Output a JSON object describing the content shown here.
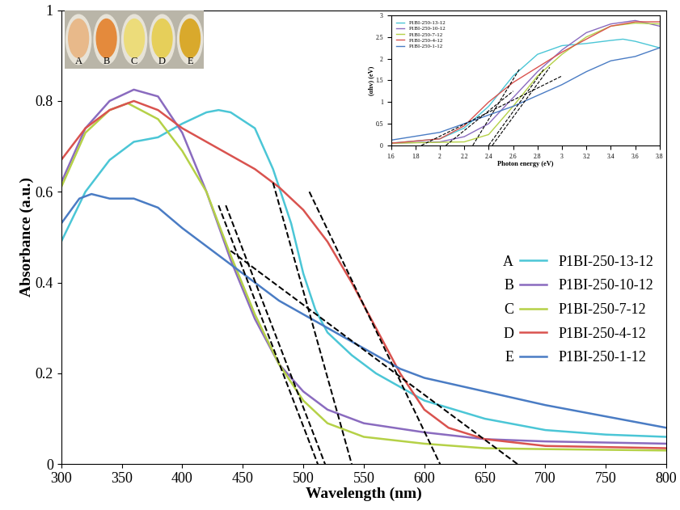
{
  "chart_data": [
    {
      "type": "line",
      "x_label": "Wavelength (nm)",
      "y_label": "Absorbance (a.u.)",
      "xlim": [
        300,
        800
      ],
      "xticks": [
        300,
        350,
        400,
        450,
        500,
        550,
        600,
        650,
        700,
        750,
        800
      ],
      "ylim": [
        0,
        1
      ],
      "yticks": [
        0,
        0.2,
        0.4,
        0.6,
        0.8,
        1
      ],
      "grid": false,
      "legend": "lower right",
      "line_style": "solid",
      "series": [
        {
          "name": "P1BI-250-13-12",
          "label": "A",
          "color": "#4bc6d6",
          "sample_color": "#e8b98a",
          "x": [
            300,
            320,
            340,
            360,
            380,
            400,
            420,
            430,
            440,
            460,
            475,
            490,
            500,
            510,
            520,
            540,
            560,
            580,
            600,
            650,
            700,
            750,
            800
          ],
          "values": [
            0.49,
            0.6,
            0.67,
            0.71,
            0.72,
            0.75,
            0.775,
            0.78,
            0.775,
            0.74,
            0.65,
            0.53,
            0.42,
            0.34,
            0.29,
            0.24,
            0.2,
            0.17,
            0.14,
            0.1,
            0.075,
            0.065,
            0.06
          ]
        },
        {
          "name": "P1BI-250-10-12",
          "label": "B",
          "color": "#8a6bbf",
          "sample_color": "#e48a3c",
          "x": [
            300,
            320,
            340,
            360,
            380,
            400,
            420,
            440,
            460,
            480,
            500,
            520,
            550,
            600,
            650,
            700,
            800
          ],
          "values": [
            0.62,
            0.74,
            0.8,
            0.825,
            0.81,
            0.73,
            0.6,
            0.45,
            0.32,
            0.22,
            0.16,
            0.12,
            0.09,
            0.07,
            0.055,
            0.05,
            0.045
          ]
        },
        {
          "name": "P1BI-250-7-12",
          "label": "C",
          "color": "#b5d147",
          "sample_color": "#ecdc7a",
          "x": [
            300,
            320,
            340,
            355,
            380,
            400,
            420,
            440,
            460,
            480,
            500,
            520,
            550,
            600,
            650,
            700,
            800
          ],
          "values": [
            0.61,
            0.73,
            0.78,
            0.795,
            0.76,
            0.69,
            0.6,
            0.46,
            0.33,
            0.22,
            0.14,
            0.09,
            0.06,
            0.045,
            0.035,
            0.033,
            0.03
          ]
        },
        {
          "name": "P1BI-250-4-12",
          "label": "D",
          "color": "#d9534f",
          "sample_color": "#e6cf5a",
          "x": [
            300,
            320,
            340,
            360,
            380,
            400,
            420,
            440,
            460,
            480,
            500,
            520,
            540,
            560,
            580,
            600,
            620,
            650,
            700,
            800
          ],
          "values": [
            0.67,
            0.74,
            0.78,
            0.8,
            0.78,
            0.74,
            0.71,
            0.68,
            0.65,
            0.61,
            0.56,
            0.49,
            0.4,
            0.3,
            0.2,
            0.12,
            0.08,
            0.055,
            0.04,
            0.035
          ]
        },
        {
          "name": "P1BI-250-1-12",
          "label": "E",
          "color": "#4a7cc4",
          "sample_color": "#d9a92c",
          "x": [
            300,
            315,
            325,
            340,
            360,
            380,
            400,
            420,
            440,
            460,
            480,
            500,
            520,
            540,
            560,
            580,
            600,
            650,
            700,
            750,
            800
          ],
          "values": [
            0.53,
            0.585,
            0.595,
            0.585,
            0.585,
            0.565,
            0.52,
            0.48,
            0.44,
            0.4,
            0.36,
            0.33,
            0.3,
            0.27,
            0.24,
            0.21,
            0.19,
            0.16,
            0.13,
            0.105,
            0.08
          ]
        }
      ],
      "tangent_lines": {
        "color": "#000000",
        "line_style": "dashed",
        "lines": [
          {
            "x": [
              430,
              512
            ],
            "y": [
              0.57,
              0
            ]
          },
          {
            "x": [
              436,
              518
            ],
            "y": [
              0.57,
              0
            ]
          },
          {
            "x": [
              475,
              540
            ],
            "y": [
              0.62,
              0
            ]
          },
          {
            "x": [
              505,
              613
            ],
            "y": [
              0.6,
              0
            ]
          },
          {
            "x": [
              440,
              677
            ],
            "y": [
              0.47,
              0
            ]
          }
        ]
      }
    },
    {
      "type": "line",
      "x_label": "Photon energy (eV)",
      "y_label": "(αhv) (eV)",
      "xlim": [
        1.6,
        3.8
      ],
      "xticks": [
        1.6,
        1.8,
        2,
        2.2,
        2.4,
        2.6,
        2.8,
        3,
        3.2,
        3.4,
        3.6,
        3.8
      ],
      "ylim": [
        0,
        3
      ],
      "yticks": [
        0,
        0.5,
        1,
        1.5,
        2,
        2.5,
        3
      ],
      "grid": false,
      "legend": "upper left",
      "line_style": "solid",
      "series": [
        {
          "name": "P1BI-250-13-12",
          "color": "#4bc6d6",
          "x": [
            1.6,
            2.0,
            2.2,
            2.4,
            2.6,
            2.8,
            3.0,
            3.2,
            3.4,
            3.5,
            3.6,
            3.8
          ],
          "values": [
            0.05,
            0.15,
            0.4,
            0.9,
            1.6,
            2.1,
            2.3,
            2.35,
            2.42,
            2.45,
            2.4,
            2.25
          ]
        },
        {
          "name": "P1BI-250-10-12",
          "color": "#8a6bbf",
          "x": [
            1.6,
            2.0,
            2.2,
            2.4,
            2.6,
            2.8,
            3.0,
            3.2,
            3.4,
            3.6,
            3.8
          ],
          "values": [
            0.05,
            0.08,
            0.2,
            0.5,
            1.1,
            1.7,
            2.2,
            2.6,
            2.8,
            2.88,
            2.75
          ]
        },
        {
          "name": "P1BI-250-7-12",
          "color": "#b5d147",
          "x": [
            1.6,
            2.2,
            2.4,
            2.6,
            2.8,
            3.0,
            3.2,
            3.4,
            3.6,
            3.8
          ],
          "values": [
            0.05,
            0.08,
            0.25,
            0.9,
            1.6,
            2.1,
            2.5,
            2.75,
            2.82,
            2.8
          ]
        },
        {
          "name": "P1BI-250-4-12",
          "color": "#d9534f",
          "x": [
            1.6,
            2.0,
            2.2,
            2.4,
            2.6,
            2.8,
            3.0,
            3.2,
            3.4,
            3.6,
            3.8
          ],
          "values": [
            0.05,
            0.15,
            0.45,
            1.0,
            1.45,
            1.8,
            2.15,
            2.45,
            2.75,
            2.85,
            2.85
          ]
        },
        {
          "name": "P1BI-250-1-12",
          "color": "#4a7cc4",
          "x": [
            1.6,
            2.0,
            2.2,
            2.4,
            2.6,
            2.8,
            3.0,
            3.2,
            3.4,
            3.6,
            3.8
          ],
          "values": [
            0.12,
            0.3,
            0.5,
            0.7,
            0.9,
            1.15,
            1.4,
            1.7,
            1.95,
            2.05,
            2.25
          ]
        }
      ],
      "tangent_lines": {
        "color": "#000000",
        "line_style": "dashed",
        "lines": [
          {
            "x": [
              1.85,
              3.0
            ],
            "y": [
              0,
              1.6
            ]
          },
          {
            "x": [
              2.05,
              2.6
            ],
            "y": [
              0,
              1.25
            ]
          },
          {
            "x": [
              2.27,
              2.65
            ],
            "y": [
              0,
              1.75
            ]
          },
          {
            "x": [
              2.4,
              2.85
            ],
            "y": [
              0,
              1.75
            ]
          },
          {
            "x": [
              2.43,
              2.9
            ],
            "y": [
              0,
              1.8
            ]
          }
        ]
      }
    }
  ]
}
